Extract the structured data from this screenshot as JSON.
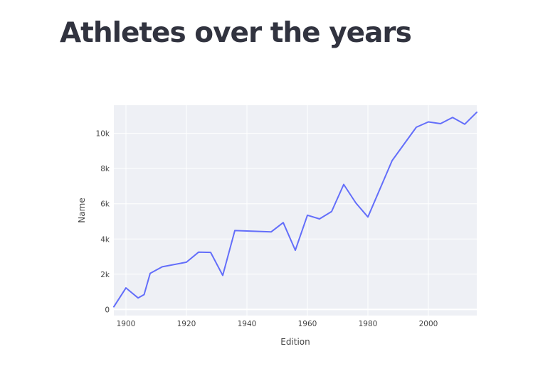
{
  "page": {
    "title": "Athletes over the years"
  },
  "chart_data": {
    "type": "line",
    "title": "",
    "xlabel": "Edition",
    "ylabel": "Name",
    "xlim": [
      1896,
      2016
    ],
    "ylim": [
      -350,
      11600
    ],
    "grid": true,
    "line_color": "#636efa",
    "plot_bg": "#eef0f5",
    "x_ticks": [
      1900,
      1920,
      1940,
      1960,
      1980,
      2000
    ],
    "x_tick_labels": [
      "1900",
      "1920",
      "1940",
      "1960",
      "1980",
      "2000"
    ],
    "y_ticks": [
      0,
      2000,
      4000,
      6000,
      8000,
      10000
    ],
    "y_tick_labels": [
      "0",
      "2k",
      "4k",
      "6k",
      "8k",
      "10k"
    ],
    "series": [
      {
        "name": "Name",
        "x": [
          1896,
          1900,
          1904,
          1906,
          1908,
          1912,
          1920,
          1924,
          1928,
          1932,
          1936,
          1948,
          1952,
          1956,
          1960,
          1964,
          1968,
          1972,
          1976,
          1980,
          1984,
          1988,
          1992,
          1996,
          2000,
          2004,
          2008,
          2012,
          2016
        ],
        "values": [
          150,
          1220,
          650,
          840,
          2050,
          2420,
          2680,
          3250,
          3240,
          1930,
          4480,
          4400,
          4930,
          3360,
          5350,
          5140,
          5560,
          7100,
          6050,
          5250,
          6850,
          8450,
          9400,
          10350,
          10650,
          10550,
          10900,
          10520,
          11200
        ]
      }
    ]
  }
}
